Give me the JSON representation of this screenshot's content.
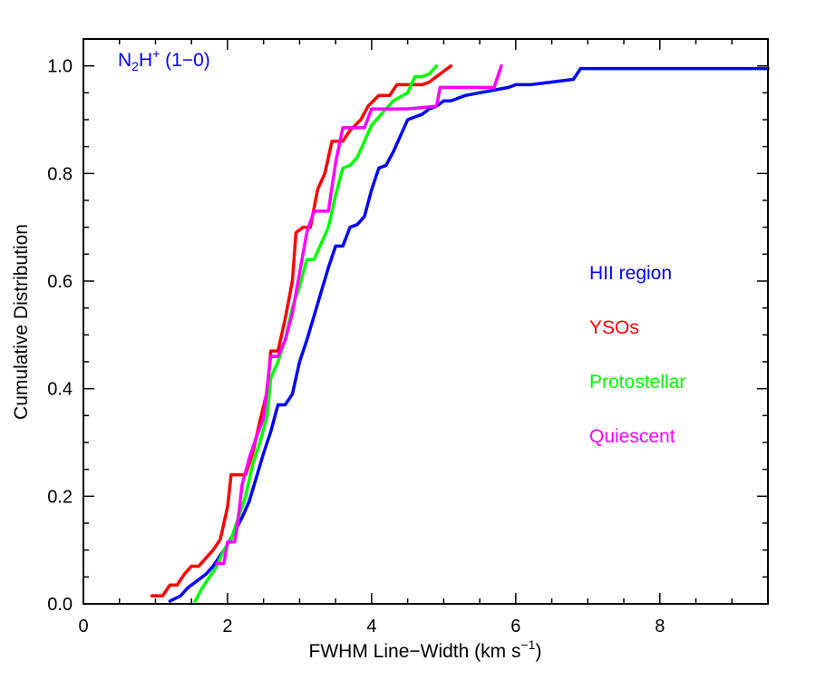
{
  "chart_data": {
    "type": "line",
    "title": "",
    "annotation": {
      "base": "N",
      "sub": "2",
      "mid": "H",
      "sup": "+",
      "tail": " (1−0)",
      "color": "#0000ff"
    },
    "xlabel": {
      "text": "FWHM Line−Width (km s",
      "sup": "−1",
      "close": ")"
    },
    "ylabel": "Cumulative Distribution",
    "xlim": [
      0,
      9.5
    ],
    "ylim": [
      0,
      1.05
    ],
    "xticks": [
      0,
      2,
      4,
      6,
      8
    ],
    "xtick_labels": [
      "0",
      "2",
      "4",
      "6",
      "8"
    ],
    "yticks": [
      0.0,
      0.2,
      0.4,
      0.6,
      0.8,
      1.0
    ],
    "ytick_labels": [
      "0.0",
      "0.2",
      "0.4",
      "0.6",
      "0.8",
      "1.0"
    ],
    "x_minor_step": 0.5,
    "y_minor_step": 0.05,
    "legend_placement": "center-right",
    "series": [
      {
        "name": "HII region",
        "color": "#0000ff",
        "points": [
          [
            1.2,
            0.005
          ],
          [
            1.35,
            0.015
          ],
          [
            1.45,
            0.03
          ],
          [
            1.55,
            0.04
          ],
          [
            1.7,
            0.055
          ],
          [
            1.8,
            0.07
          ],
          [
            1.9,
            0.09
          ],
          [
            2.0,
            0.11
          ],
          [
            2.1,
            0.135
          ],
          [
            2.2,
            0.16
          ],
          [
            2.3,
            0.19
          ],
          [
            2.4,
            0.235
          ],
          [
            2.5,
            0.28
          ],
          [
            2.6,
            0.32
          ],
          [
            2.7,
            0.37
          ],
          [
            2.8,
            0.37
          ],
          [
            2.9,
            0.39
          ],
          [
            3.0,
            0.45
          ],
          [
            3.1,
            0.49
          ],
          [
            3.2,
            0.535
          ],
          [
            3.3,
            0.58
          ],
          [
            3.4,
            0.625
          ],
          [
            3.5,
            0.665
          ],
          [
            3.6,
            0.665
          ],
          [
            3.7,
            0.7
          ],
          [
            3.8,
            0.705
          ],
          [
            3.9,
            0.72
          ],
          [
            4.0,
            0.77
          ],
          [
            4.1,
            0.81
          ],
          [
            4.2,
            0.815
          ],
          [
            4.3,
            0.84
          ],
          [
            4.4,
            0.87
          ],
          [
            4.5,
            0.9
          ],
          [
            4.6,
            0.905
          ],
          [
            4.7,
            0.91
          ],
          [
            4.8,
            0.92
          ],
          [
            4.9,
            0.925
          ],
          [
            5.0,
            0.935
          ],
          [
            5.1,
            0.935
          ],
          [
            5.2,
            0.94
          ],
          [
            5.3,
            0.945
          ],
          [
            5.5,
            0.95
          ],
          [
            5.7,
            0.955
          ],
          [
            5.9,
            0.96
          ],
          [
            6.0,
            0.965
          ],
          [
            6.2,
            0.965
          ],
          [
            6.5,
            0.97
          ],
          [
            6.8,
            0.975
          ],
          [
            6.9,
            0.995
          ],
          [
            9.5,
            0.995
          ]
        ]
      },
      {
        "name": "YSOs",
        "color": "#ff0000",
        "points": [
          [
            0.95,
            0.015
          ],
          [
            1.1,
            0.015
          ],
          [
            1.2,
            0.035
          ],
          [
            1.3,
            0.035
          ],
          [
            1.4,
            0.055
          ],
          [
            1.5,
            0.07
          ],
          [
            1.6,
            0.07
          ],
          [
            1.7,
            0.085
          ],
          [
            1.8,
            0.1
          ],
          [
            1.9,
            0.12
          ],
          [
            2.0,
            0.18
          ],
          [
            2.05,
            0.24
          ],
          [
            2.25,
            0.24
          ],
          [
            2.35,
            0.28
          ],
          [
            2.45,
            0.34
          ],
          [
            2.55,
            0.395
          ],
          [
            2.6,
            0.47
          ],
          [
            2.7,
            0.47
          ],
          [
            2.8,
            0.53
          ],
          [
            2.9,
            0.6
          ],
          [
            2.95,
            0.69
          ],
          [
            3.05,
            0.7
          ],
          [
            3.15,
            0.7
          ],
          [
            3.25,
            0.77
          ],
          [
            3.35,
            0.8
          ],
          [
            3.45,
            0.86
          ],
          [
            3.6,
            0.86
          ],
          [
            3.7,
            0.88
          ],
          [
            3.85,
            0.9
          ],
          [
            3.95,
            0.925
          ],
          [
            4.1,
            0.945
          ],
          [
            4.25,
            0.945
          ],
          [
            4.35,
            0.965
          ],
          [
            4.7,
            0.965
          ],
          [
            4.8,
            0.97
          ],
          [
            4.9,
            0.98
          ],
          [
            5.0,
            0.99
          ],
          [
            5.1,
            1.0
          ]
        ]
      },
      {
        "name": "Protostellar",
        "color": "#00ff00",
        "points": [
          [
            1.55,
            0.005
          ],
          [
            1.65,
            0.03
          ],
          [
            1.75,
            0.05
          ],
          [
            1.85,
            0.07
          ],
          [
            1.95,
            0.1
          ],
          [
            2.05,
            0.12
          ],
          [
            2.15,
            0.16
          ],
          [
            2.25,
            0.2
          ],
          [
            2.35,
            0.26
          ],
          [
            2.45,
            0.3
          ],
          [
            2.55,
            0.35
          ],
          [
            2.6,
            0.42
          ],
          [
            2.7,
            0.45
          ],
          [
            2.8,
            0.49
          ],
          [
            2.9,
            0.55
          ],
          [
            3.0,
            0.59
          ],
          [
            3.1,
            0.64
          ],
          [
            3.2,
            0.64
          ],
          [
            3.3,
            0.67
          ],
          [
            3.4,
            0.7
          ],
          [
            3.5,
            0.76
          ],
          [
            3.6,
            0.81
          ],
          [
            3.7,
            0.815
          ],
          [
            3.8,
            0.83
          ],
          [
            3.9,
            0.86
          ],
          [
            4.0,
            0.89
          ],
          [
            4.2,
            0.92
          ],
          [
            4.3,
            0.935
          ],
          [
            4.5,
            0.95
          ],
          [
            4.6,
            0.98
          ],
          [
            4.7,
            0.98
          ],
          [
            4.8,
            0.985
          ],
          [
            4.9,
            1.0
          ]
        ]
      },
      {
        "name": "Quiescent",
        "color": "#ff00ff",
        "points": [
          [
            1.85,
            0.075
          ],
          [
            1.95,
            0.075
          ],
          [
            2.0,
            0.115
          ],
          [
            2.1,
            0.115
          ],
          [
            2.15,
            0.16
          ],
          [
            2.2,
            0.22
          ],
          [
            2.3,
            0.27
          ],
          [
            2.4,
            0.31
          ],
          [
            2.5,
            0.345
          ],
          [
            2.6,
            0.46
          ],
          [
            2.7,
            0.46
          ],
          [
            2.8,
            0.49
          ],
          [
            2.9,
            0.54
          ],
          [
            3.0,
            0.615
          ],
          [
            3.1,
            0.69
          ],
          [
            3.2,
            0.73
          ],
          [
            3.4,
            0.73
          ],
          [
            3.5,
            0.82
          ],
          [
            3.6,
            0.885
          ],
          [
            3.8,
            0.885
          ],
          [
            3.9,
            0.885
          ],
          [
            4.0,
            0.92
          ],
          [
            4.5,
            0.92
          ],
          [
            4.9,
            0.925
          ],
          [
            4.95,
            0.96
          ],
          [
            5.7,
            0.96
          ],
          [
            5.8,
            1.0
          ]
        ]
      }
    ]
  }
}
